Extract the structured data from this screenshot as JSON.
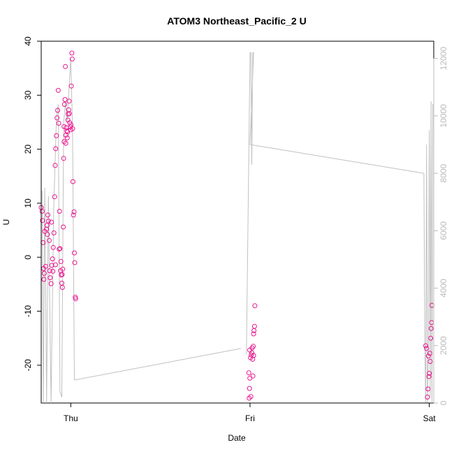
{
  "chart_data": {
    "type": "scatter",
    "title": "ATOM3 Northeast_Pacific_2 U",
    "xlabel": "Date",
    "ylabel": "U",
    "x_ticks": [
      "Thu",
      "Fri",
      "Sat"
    ],
    "y_left_ticks": [
      -20,
      -10,
      0,
      10,
      20,
      30,
      40
    ],
    "y_left_lim": [
      -27,
      40
    ],
    "y_right_ticks": [
      0,
      2000,
      4000,
      6000,
      8000,
      10000,
      12000
    ],
    "y_right_lim": [
      0,
      12600
    ],
    "x_lim": [
      -0.165,
      2.025
    ],
    "point_color": "#e8178f",
    "line_color": "#c0c0c0",
    "series": [
      {
        "kind": "scatter-left-axis",
        "points": [
          [
            -0.165,
            9.2
          ],
          [
            -0.16,
            8.5
          ],
          [
            -0.158,
            6.8
          ],
          [
            -0.155,
            2.7
          ],
          [
            -0.152,
            -2.1
          ],
          [
            -0.15,
            -4.1
          ],
          [
            -0.148,
            -3
          ],
          [
            -0.145,
            4.8
          ],
          [
            -0.14,
            -1.7
          ],
          [
            -0.135,
            5.2
          ],
          [
            -0.132,
            5.9
          ],
          [
            -0.128,
            7.8
          ],
          [
            -0.125,
            6.7
          ],
          [
            -0.12,
            3.1
          ],
          [
            -0.118,
            -2.5
          ],
          [
            -0.115,
            -3.8
          ],
          [
            -0.11,
            -4.9
          ],
          [
            -0.106,
            -1.5
          ],
          [
            -0.102,
            -0.3
          ],
          [
            -0.098,
            1.8
          ],
          [
            -0.094,
            4.5
          ],
          [
            -0.09,
            11.2
          ],
          [
            -0.087,
            17
          ],
          [
            -0.084,
            20.1
          ],
          [
            -0.08,
            22.5
          ],
          [
            -0.077,
            25.8
          ],
          [
            -0.073,
            27.2
          ],
          [
            -0.07,
            30.9
          ],
          [
            -0.067,
            24.8
          ],
          [
            -0.063,
            8.5
          ],
          [
            -0.06,
            1.6
          ],
          [
            -0.057,
            -2.5
          ],
          [
            -0.053,
            -3.3
          ],
          [
            -0.05,
            -4.8
          ],
          [
            -0.047,
            -5.6
          ],
          [
            -0.045,
            -2.2
          ],
          [
            -0.042,
            5.6
          ],
          [
            -0.04,
            18.3
          ],
          [
            -0.037,
            21.4
          ],
          [
            -0.035,
            28.3
          ],
          [
            -0.032,
            29.2
          ],
          [
            -0.03,
            35.3
          ],
          [
            -0.027,
            22.6
          ],
          [
            -0.025,
            24
          ],
          [
            -0.022,
            23.4
          ],
          [
            -0.02,
            22.1
          ],
          [
            -0.018,
            23.2
          ],
          [
            -0.015,
            26.5
          ],
          [
            -0.012,
            27.3
          ],
          [
            -0.009,
            28.9
          ],
          [
            -0.006,
            24.9
          ],
          [
            -0.003,
            24.1
          ],
          [
            0,
            23.6
          ],
          [
            0.003,
            31.7
          ],
          [
            0.006,
            37.8
          ],
          [
            0.008,
            36.7
          ],
          [
            0.01,
            23.8
          ],
          [
            0.012,
            14
          ],
          [
            0.015,
            7.8
          ],
          [
            0.018,
            8.4
          ],
          [
            0.02,
            0.8
          ],
          [
            0.022,
            -1
          ],
          [
            0.025,
            -7.4
          ],
          [
            0.027,
            -7.7
          ],
          [
            -0.13,
            4.2
          ],
          [
            -0.108,
            6.5
          ],
          [
            -0.1,
            -2.6
          ],
          [
            -0.085,
            -1.4
          ],
          [
            -0.065,
            1.5
          ],
          [
            -0.055,
            -0.8
          ],
          [
            -0.048,
            -3.2
          ],
          [
            -0.038,
            24.2
          ],
          [
            -0.028,
            21.1
          ],
          [
            -0.016,
            25.4
          ],
          [
            -0.008,
            26.6
          ],
          [
            0.001,
            24.5
          ],
          [
            1.98,
            -16.4
          ],
          [
            1.985,
            -16.9
          ],
          [
            1.99,
            -25.9
          ],
          [
            1.993,
            -24.4
          ],
          [
            1.995,
            -18.3
          ],
          [
            1.998,
            -22.1
          ],
          [
            2.0,
            -21.5
          ],
          [
            2.003,
            -17.8
          ],
          [
            2.005,
            -19.3
          ],
          [
            2.008,
            -15
          ],
          [
            2.01,
            -13.2
          ],
          [
            2.013,
            -12.1
          ],
          [
            2.015,
            -8.9
          ],
          [
            0.998,
            -17.2
          ],
          [
            1.003,
            -18.6
          ],
          [
            1.007,
            -18.1
          ],
          [
            1.01,
            -17.7
          ],
          [
            1.012,
            -16.8
          ],
          [
            1.015,
            -18.9
          ],
          [
            1.018,
            -16.5
          ],
          [
            0.995,
            -26.1
          ],
          [
            0.997,
            -24.3
          ],
          [
            1.02,
            -14.2
          ],
          [
            1.022,
            -13.6
          ],
          [
            1.025,
            -12.8
          ],
          [
            1.027,
            -9
          ],
          [
            0.993,
            -21.4
          ],
          [
            0.999,
            -22.4
          ],
          [
            1.005,
            -25.8
          ],
          [
            1.016,
            -22
          ],
          [
            1.02,
            -18.2
          ]
        ]
      }
    ]
  }
}
